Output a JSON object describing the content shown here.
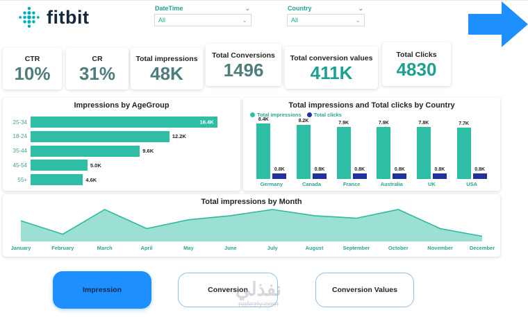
{
  "header": {
    "logo_text": "fitbit",
    "slicers": [
      {
        "label": "DateTime",
        "value": "All"
      },
      {
        "label": "Country",
        "value": "All"
      }
    ],
    "nav_arrow_icon": "right-arrow"
  },
  "kpis": [
    {
      "title": "CTR",
      "value": "10%",
      "style": "slate"
    },
    {
      "title": "CR",
      "value": "31%",
      "style": "slate"
    },
    {
      "title": "Total impressions",
      "value": "48K",
      "style": "slate"
    },
    {
      "title": "Total Conversions",
      "value": "1496",
      "style": "slate"
    },
    {
      "title": "Total conversion values",
      "value": "411K",
      "style": "teal"
    },
    {
      "title": "Total Clicks",
      "value": "4830",
      "style": "teal"
    }
  ],
  "chart_data": [
    {
      "type": "bar",
      "orientation": "horizontal",
      "title": "Impressions by AgeGroup",
      "categories": [
        "25-34",
        "18-24",
        "35-44",
        "45-54",
        "55+"
      ],
      "values": [
        16.4,
        12.2,
        9.6,
        5.0,
        4.6
      ],
      "labels": [
        "16.4K",
        "12.2K",
        "9.6K",
        "5.0K",
        "4.6K"
      ],
      "unit": "K",
      "xlim": [
        0,
        17.7
      ],
      "bar_color": "#2EBEA6"
    },
    {
      "type": "bar",
      "orientation": "vertical",
      "title": "Total impressions and Total clicks by Country",
      "categories": [
        "Germany",
        "Canada",
        "France",
        "Australia",
        "UK",
        "USA"
      ],
      "series": [
        {
          "name": "Total impressions",
          "color": "#2EBEA6",
          "values": [
            8.4,
            8.2,
            7.9,
            7.9,
            7.8,
            7.7
          ],
          "labels": [
            "8.4K",
            "8.2K",
            "7.9K",
            "7.9K",
            "7.8K",
            "7.7K"
          ]
        },
        {
          "name": "Total clicks",
          "color": "#20309C",
          "values": [
            0.8,
            0.8,
            0.8,
            0.8,
            0.8,
            0.8
          ],
          "labels": [
            "0.8K",
            "0.8K",
            "0.8K",
            "0.8K",
            "0.8K",
            "0.8K"
          ]
        }
      ],
      "unit": "K",
      "ylim": [
        0,
        9
      ],
      "legend_position": "top-left"
    },
    {
      "type": "area",
      "title": "Total impressions by Month",
      "categories": [
        "January",
        "February",
        "March",
        "April",
        "May",
        "June",
        "July",
        "August",
        "September",
        "October",
        "November",
        "December"
      ],
      "values": [
        4.0,
        1.4,
        6.2,
        2.5,
        4.2,
        5.0,
        6.2,
        5.0,
        4.5,
        6.2,
        2.5,
        1.0
      ],
      "unit": "K (estimated, no value labels shown)",
      "fill_color": "#9BE0D2",
      "stroke_color": "#2EB8A0"
    }
  ],
  "buttons": [
    {
      "label": "Impression",
      "active": true
    },
    {
      "label": "Conversion",
      "active": false
    },
    {
      "label": "Conversion Values",
      "active": false
    }
  ],
  "watermark": {
    "text_arabic": "نفذلي",
    "text_latin": "nafezly.com"
  },
  "colors": {
    "teal_bar": "#2EBEA6",
    "navy_bar": "#20309C",
    "slate_value": "#4E7D7C",
    "teal_value": "#1CA08F",
    "label_teal": "#2AA394",
    "title_dark": "#252423",
    "accent_blue": "#1E8FFF",
    "logo_teal": "#00B0B9",
    "logo_text_color": "#16283E"
  }
}
